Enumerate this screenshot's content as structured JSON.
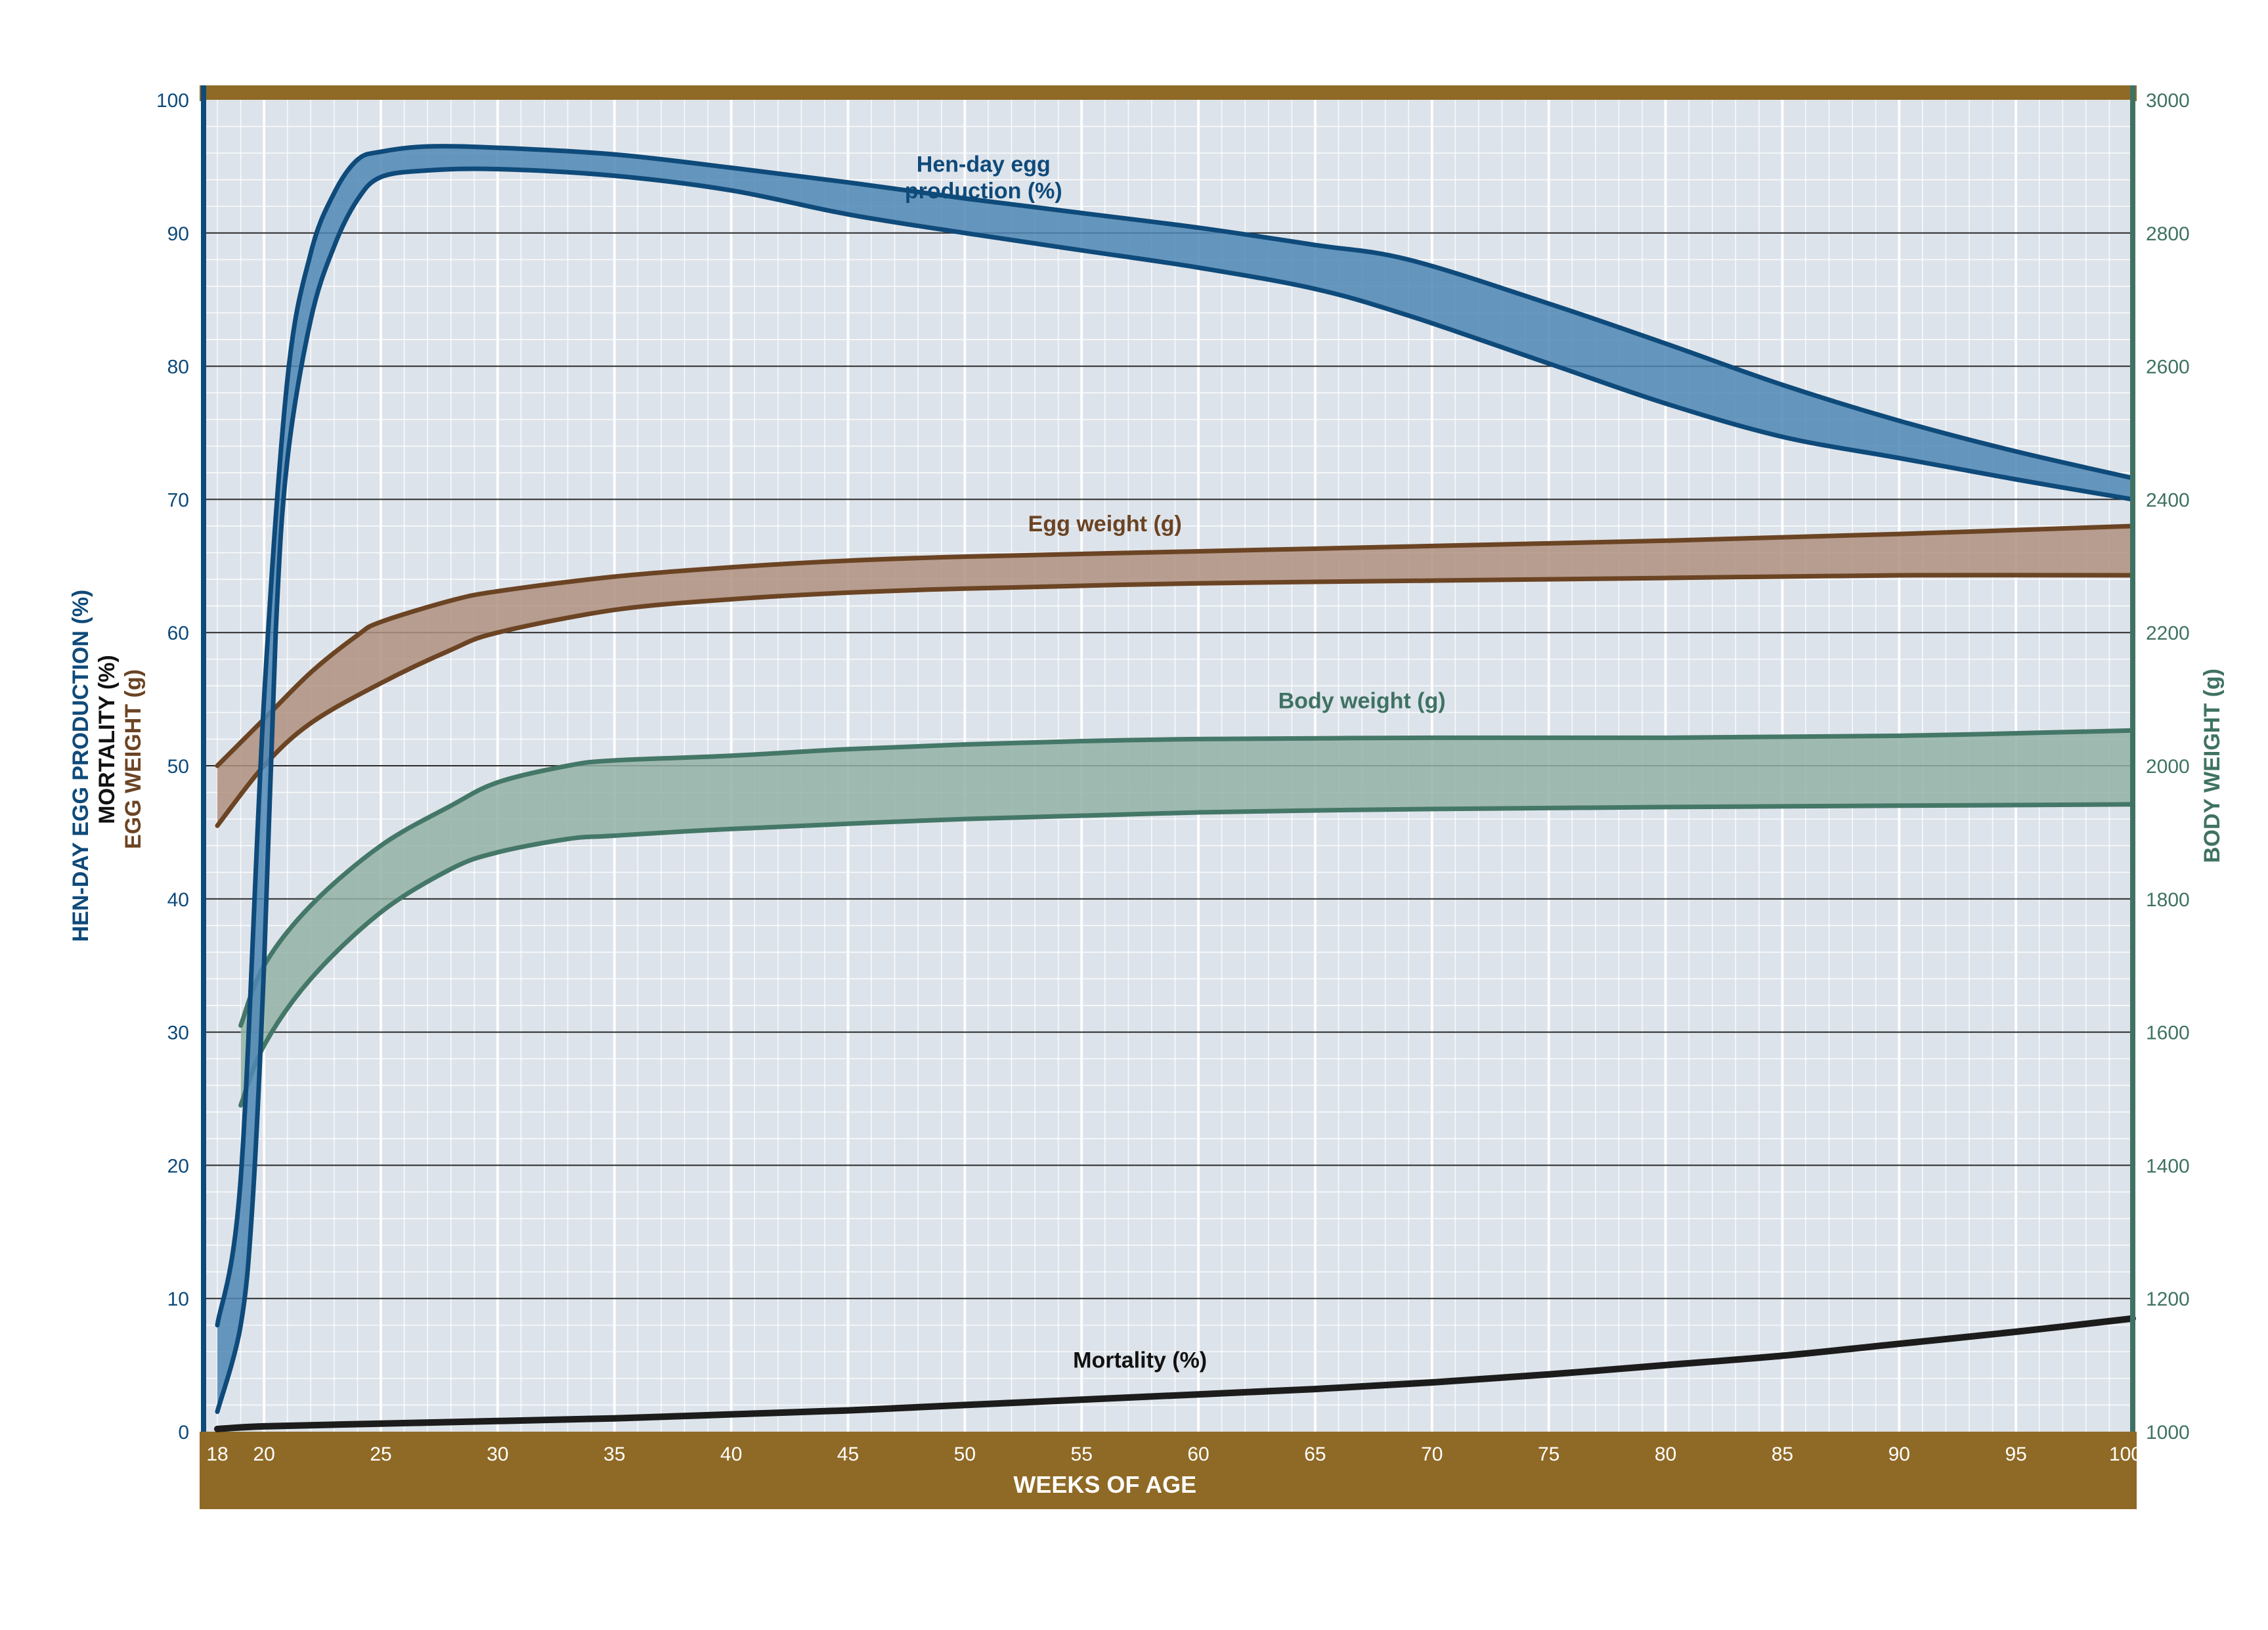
{
  "colors": {
    "plot_bg": "#dde3ea",
    "frame": "#8f6a26",
    "grid_major": "#2a2a2a",
    "grid_minor": "#ffffff",
    "left_axis": "#0e4a7a",
    "right_axis": "#3f7263",
    "x_text": "#ffffff",
    "production_line": "#0e4a7a",
    "production_fill": "#4f87b5",
    "egg_line": "#6b4424",
    "egg_fill": "#b0917f",
    "body_line": "#447767",
    "body_fill": "#93b1a6",
    "mortality_line": "#1c1c1c",
    "mortality_text": "#111111"
  },
  "chart_data": {
    "type": "area",
    "xlabel": "WEEKS OF AGE",
    "ylabel_left": [
      "HEN-DAY EGG PRODUCTION (%)",
      "MORTALITY (%)",
      "EGG WEIGHT (g)"
    ],
    "ylabel_right": "BODY WEIGHT (g)",
    "x_ticks": [
      18,
      20,
      25,
      30,
      35,
      40,
      45,
      50,
      55,
      60,
      65,
      70,
      75,
      80,
      85,
      90,
      95,
      100
    ],
    "y_left_ticks": [
      0,
      10,
      20,
      30,
      40,
      50,
      60,
      70,
      80,
      90,
      100
    ],
    "y_right_ticks": [
      1000,
      1200,
      1400,
      1600,
      1800,
      2000,
      2200,
      2400,
      2600,
      2800,
      3000
    ],
    "xlim": [
      18,
      100
    ],
    "ylim_left": [
      0,
      100
    ],
    "ylim_right": [
      1000,
      3000
    ],
    "grid": true,
    "series": [
      {
        "name": "Hen-day egg production (%)",
        "label_lines": [
          "Hen-day egg",
          "production (%)"
        ],
        "axis": "left",
        "upper": [
          [
            18,
            8
          ],
          [
            19,
            19
          ],
          [
            20,
            55
          ],
          [
            21,
            79
          ],
          [
            22,
            88.5
          ],
          [
            23,
            93
          ],
          [
            24,
            95.5
          ],
          [
            25,
            96.1
          ],
          [
            27,
            96.5
          ],
          [
            30,
            96.4
          ],
          [
            35,
            95.9
          ],
          [
            40,
            94.9
          ],
          [
            45,
            93.8
          ],
          [
            50,
            92.6
          ],
          [
            55,
            91.5
          ],
          [
            60,
            90.4
          ],
          [
            65,
            89.1
          ],
          [
            69,
            88
          ],
          [
            75,
            84.7
          ],
          [
            80,
            81.7
          ],
          [
            85,
            78.6
          ],
          [
            90,
            75.9
          ],
          [
            95,
            73.6
          ],
          [
            100,
            71.6
          ]
        ],
        "lower": [
          [
            18,
            1.5
          ],
          [
            19,
            8
          ],
          [
            19.5,
            17
          ],
          [
            20,
            35
          ],
          [
            20.5,
            60
          ],
          [
            21,
            73
          ],
          [
            22,
            83.5
          ],
          [
            23,
            89
          ],
          [
            24,
            92.5
          ],
          [
            25,
            94.2
          ],
          [
            27,
            94.7
          ],
          [
            30,
            94.8
          ],
          [
            35,
            94.3
          ],
          [
            40,
            93.2
          ],
          [
            45,
            91.4
          ],
          [
            50,
            90
          ],
          [
            55,
            88.7
          ],
          [
            60,
            87.4
          ],
          [
            65,
            85.8
          ],
          [
            69,
            83.8
          ],
          [
            75,
            80.2
          ],
          [
            80,
            77.2
          ],
          [
            85,
            74.7
          ],
          [
            90,
            73.1
          ],
          [
            95,
            71.5
          ],
          [
            100,
            70
          ]
        ]
      },
      {
        "name": "Egg weight (g)",
        "axis": "left",
        "upper": [
          [
            18,
            50
          ],
          [
            20,
            53.5
          ],
          [
            22,
            57
          ],
          [
            24,
            59.8
          ],
          [
            25,
            60.8
          ],
          [
            28,
            62.4
          ],
          [
            30,
            63.1
          ],
          [
            35,
            64.2
          ],
          [
            40,
            64.9
          ],
          [
            45,
            65.4
          ],
          [
            50,
            65.7
          ],
          [
            60,
            66.1
          ],
          [
            70,
            66.5
          ],
          [
            80,
            66.9
          ],
          [
            90,
            67.4
          ],
          [
            100,
            68
          ]
        ],
        "lower": [
          [
            18,
            45.5
          ],
          [
            20,
            50
          ],
          [
            22,
            53.2
          ],
          [
            25,
            56.2
          ],
          [
            28,
            58.7
          ],
          [
            30,
            60
          ],
          [
            35,
            61.7
          ],
          [
            40,
            62.5
          ],
          [
            45,
            63
          ],
          [
            50,
            63.3
          ],
          [
            60,
            63.7
          ],
          [
            70,
            63.9
          ],
          [
            80,
            64.1
          ],
          [
            90,
            64.3
          ],
          [
            100,
            64.3
          ]
        ]
      },
      {
        "name": "Body weight (g)",
        "axis": "right",
        "upper": [
          [
            19,
            1610
          ],
          [
            20,
            1700
          ],
          [
            22,
            1790
          ],
          [
            25,
            1880
          ],
          [
            28,
            1940
          ],
          [
            30,
            1975
          ],
          [
            33,
            2000
          ],
          [
            35,
            2008
          ],
          [
            40,
            2015
          ],
          [
            45,
            2025
          ],
          [
            50,
            2032
          ],
          [
            55,
            2037
          ],
          [
            60,
            2040
          ],
          [
            70,
            2042
          ],
          [
            80,
            2042
          ],
          [
            90,
            2045
          ],
          [
            100,
            2053
          ]
        ],
        "lower": [
          [
            19,
            1490
          ],
          [
            20,
            1580
          ],
          [
            22,
            1680
          ],
          [
            25,
            1780
          ],
          [
            28,
            1845
          ],
          [
            30,
            1870
          ],
          [
            33,
            1890
          ],
          [
            35,
            1895
          ],
          [
            40,
            1905
          ],
          [
            50,
            1920
          ],
          [
            60,
            1930
          ],
          [
            70,
            1935
          ],
          [
            80,
            1938
          ],
          [
            90,
            1940
          ],
          [
            100,
            1942
          ]
        ]
      },
      {
        "name": "Mortality (%)",
        "axis": "left",
        "line": [
          [
            18,
            0.2
          ],
          [
            20,
            0.4
          ],
          [
            25,
            0.6
          ],
          [
            30,
            0.8
          ],
          [
            35,
            1
          ],
          [
            40,
            1.3
          ],
          [
            45,
            1.6
          ],
          [
            50,
            2
          ],
          [
            55,
            2.4
          ],
          [
            60,
            2.8
          ],
          [
            65,
            3.2
          ],
          [
            70,
            3.7
          ],
          [
            75,
            4.3
          ],
          [
            80,
            5
          ],
          [
            85,
            5.7
          ],
          [
            90,
            6.6
          ],
          [
            95,
            7.5
          ],
          [
            100,
            8.5
          ]
        ]
      }
    ]
  }
}
